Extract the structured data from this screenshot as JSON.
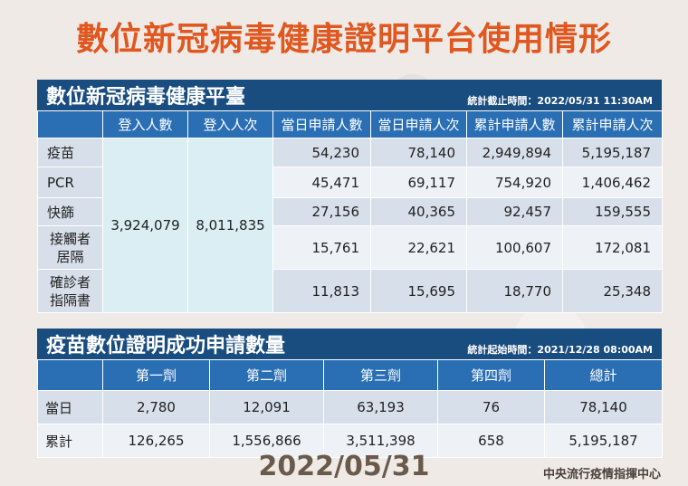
{
  "title": "數位新冠病毒健康證明平台使用情形",
  "platform": {
    "title": "數位新冠病毒健康平臺",
    "stamp": "統計截止時間：2022/05/31 11:30AM",
    "headers": [
      "",
      "登入人數",
      "登入人次",
      "當日申請人數",
      "當日申請人次",
      "累計申請人數",
      "累計申請人次"
    ],
    "login_count": "3,924,079",
    "login_times": "8,011,835",
    "rows": [
      {
        "label": "疫苗",
        "values": [
          "54,230",
          "78,140",
          "2,949,894",
          "5,195,187"
        ]
      },
      {
        "label": "PCR",
        "values": [
          "45,471",
          "69,117",
          "754,920",
          "1,406,462"
        ]
      },
      {
        "label": "快篩",
        "values": [
          "27,156",
          "40,365",
          "92,457",
          "159,555"
        ]
      },
      {
        "label_line1": "接觸者",
        "label_line2": "居隔",
        "values": [
          "15,761",
          "22,621",
          "100,607",
          "172,081"
        ]
      },
      {
        "label_line1": "確診者",
        "label_line2": "指隔書",
        "values": [
          "11,813",
          "15,695",
          "18,770",
          "25,348"
        ]
      }
    ]
  },
  "vaccine": {
    "title": "疫苗數位證明成功申請數量",
    "stamp": "統計起始時間：2021/12/28 08:00AM",
    "headers": [
      "",
      "第一劑",
      "第二劑",
      "第三劑",
      "第四劑",
      "總計"
    ],
    "rows": [
      {
        "label": "當日",
        "values": [
          "2,780",
          "12,091",
          "63,193",
          "76",
          "78,140"
        ]
      },
      {
        "label": "累計",
        "values": [
          "126,265",
          "1,556,866",
          "3,511,398",
          "658",
          "5,195,187"
        ]
      }
    ]
  },
  "footer": {
    "date": "2022/05/31",
    "org": "中央流行疫情指揮中心"
  }
}
